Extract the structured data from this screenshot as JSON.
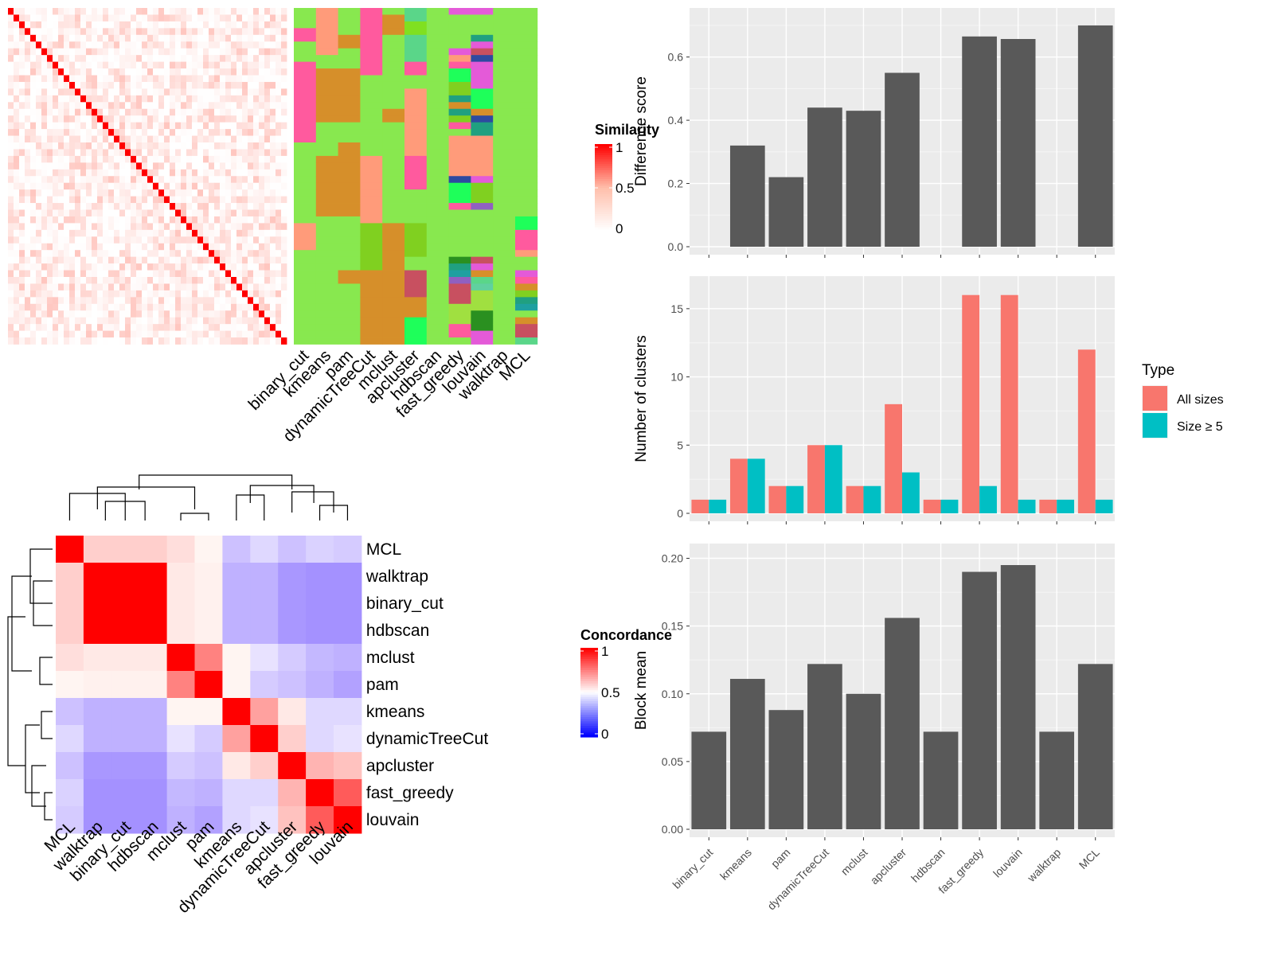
{
  "methods": [
    "binary_cut",
    "kmeans",
    "pam",
    "dynamicTreeCut",
    "mclust",
    "apcluster",
    "hdbscan",
    "fast_greedy",
    "louvain",
    "walktrap",
    "MCL"
  ],
  "similarity_legend": {
    "title": "Similarity",
    "ticks": [
      "1",
      "0.5",
      "0"
    ]
  },
  "concordance_legend": {
    "title": "Concordance",
    "ticks": [
      "1",
      "0.5",
      "0"
    ]
  },
  "concordance_order": [
    "MCL",
    "walktrap",
    "binary_cut",
    "hdbscan",
    "mclust",
    "pam",
    "kmeans",
    "dynamicTreeCut",
    "apcluster",
    "fast_greedy",
    "louvain"
  ],
  "concordance_matrix": [
    [
      1.0,
      0.62,
      0.62,
      0.62,
      0.58,
      0.5,
      0.35,
      0.42,
      0.35,
      0.4,
      0.38
    ],
    [
      0.62,
      1.0,
      1.0,
      1.0,
      0.55,
      0.52,
      0.3,
      0.3,
      0.22,
      0.2,
      0.2
    ],
    [
      0.62,
      1.0,
      1.0,
      1.0,
      0.55,
      0.52,
      0.3,
      0.3,
      0.22,
      0.2,
      0.2
    ],
    [
      0.62,
      1.0,
      1.0,
      1.0,
      0.55,
      0.52,
      0.3,
      0.3,
      0.22,
      0.2,
      0.2
    ],
    [
      0.58,
      0.55,
      0.55,
      0.55,
      1.0,
      0.78,
      0.5,
      0.45,
      0.38,
      0.32,
      0.3
    ],
    [
      0.5,
      0.52,
      0.52,
      0.52,
      0.78,
      1.0,
      0.5,
      0.38,
      0.35,
      0.3,
      0.25
    ],
    [
      0.35,
      0.3,
      0.3,
      0.3,
      0.5,
      0.5,
      1.0,
      0.72,
      0.55,
      0.42,
      0.42
    ],
    [
      0.42,
      0.3,
      0.3,
      0.3,
      0.45,
      0.38,
      0.72,
      1.0,
      0.62,
      0.42,
      0.45
    ],
    [
      0.35,
      0.22,
      0.22,
      0.22,
      0.38,
      0.35,
      0.55,
      0.62,
      1.0,
      0.68,
      0.65
    ],
    [
      0.4,
      0.2,
      0.2,
      0.2,
      0.32,
      0.3,
      0.42,
      0.42,
      0.68,
      1.0,
      0.85
    ],
    [
      0.38,
      0.2,
      0.2,
      0.2,
      0.3,
      0.25,
      0.42,
      0.45,
      0.65,
      0.85,
      1.0
    ]
  ],
  "chart_data": [
    {
      "type": "bar",
      "categories": [
        "binary_cut",
        "kmeans",
        "pam",
        "dynamicTreeCut",
        "mclust",
        "apcluster",
        "hdbscan",
        "fast_greedy",
        "louvain",
        "walktrap",
        "MCL"
      ],
      "values": [
        0,
        0.32,
        0.22,
        0.44,
        0.43,
        0.55,
        0,
        0.665,
        0.657,
        0,
        0.7
      ],
      "ylabel": "Difference score",
      "ylim": [
        0,
        0.73
      ],
      "yticks": [
        "0.0",
        "0.2",
        "0.4",
        "0.6"
      ],
      "ytick_values": [
        0,
        0.2,
        0.4,
        0.6
      ],
      "color": "#595959"
    },
    {
      "type": "bar",
      "categories": [
        "binary_cut",
        "kmeans",
        "pam",
        "dynamicTreeCut",
        "mclust",
        "apcluster",
        "hdbscan",
        "fast_greedy",
        "louvain",
        "walktrap",
        "MCL"
      ],
      "series": [
        {
          "name": "All sizes",
          "values": [
            1,
            4,
            2,
            5,
            2,
            8,
            1,
            16,
            16,
            1,
            12
          ],
          "color": "#F8766D"
        },
        {
          "name": "Size ≥ 5",
          "values": [
            1,
            4,
            2,
            5,
            2,
            3,
            1,
            2,
            1,
            1,
            1
          ],
          "color": "#00BFC4"
        }
      ],
      "ylabel": "Number of clusters",
      "ylim": [
        0,
        16.8
      ],
      "yticks": [
        "0",
        "5",
        "10",
        "15"
      ],
      "ytick_values": [
        0,
        5,
        10,
        15
      ],
      "legend_title": "Type"
    },
    {
      "type": "bar",
      "categories": [
        "binary_cut",
        "kmeans",
        "pam",
        "dynamicTreeCut",
        "mclust",
        "apcluster",
        "hdbscan",
        "fast_greedy",
        "louvain",
        "walktrap",
        "MCL"
      ],
      "values": [
        0.072,
        0.111,
        0.088,
        0.122,
        0.1,
        0.156,
        0.072,
        0.19,
        0.195,
        0.072,
        0.122
      ],
      "ylabel": "Block mean",
      "ylim": [
        0,
        0.205
      ],
      "yticks": [
        "0.00",
        "0.05",
        "0.10",
        "0.15",
        "0.20"
      ],
      "ytick_values": [
        0,
        0.05,
        0.1,
        0.15,
        0.2
      ],
      "color": "#595959"
    }
  ]
}
